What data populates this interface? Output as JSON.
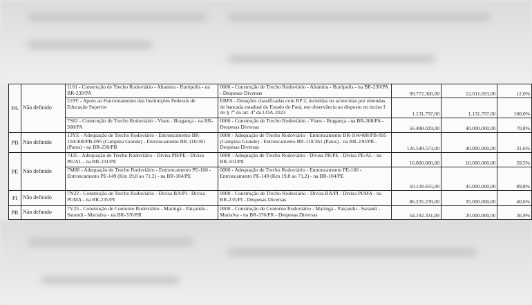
{
  "table": {
    "groups": [
      {
        "uf": "PA",
        "status": "Não definido",
        "rows": [
          {
            "acao": "1101 - Construção de Trecho Rodoviário - Altamira - Rurópolis - na BR-230/PA",
            "plano": "0000 - Construção de Trecho Rodoviário - Altamira - Rurópolis - na BR-230/PA - Despesas Diversas",
            "dotacao": "99.772.300,00",
            "valor": "12.011.693,00",
            "percentual": "12,0%"
          },
          {
            "acao": "219V - Apoio ao Funcionamento das Instituições Federais de Educação Superior",
            "plano": "EBPA - Dotações classificadas com RP 2, incluídas ou acrescidas por emendas de bancada estadual do Estado do Pará, em observância ao disposto no inciso I do § 7º do art. 4º da LOA-2023",
            "dotacao": "1.131.797,00",
            "valor": "1.131.797,00",
            "percentual": "100,0%"
          },
          {
            "acao": "7S62 - Construção de Trecho Rodoviário - Viseu - Bragança - na BR-308/PA",
            "plano": "0000 - Construção de Trecho Rodoviário - Viseu - Bragança - na BR-308/PA - Despesas Diversas",
            "dotacao": "56.488.029,00",
            "valor": "40.000.000,00",
            "percentual": "70,8%"
          }
        ]
      },
      {
        "uf": "PB",
        "status": "Não definido",
        "rows": [
          {
            "acao": "13YE - Adequação de Trecho Rodoviário - Entroncamento BR-104/408/PB-095 (Campina Grande) - Entroncamento BR-110/361 (Patos) - na BR-230/PB",
            "plano": "0000 - Adequação de Trecho Rodoviário - Entroncamento BR-104/408/PB-095 (Campina Grande) - Entroncamento BR-110/361 (Patos) - na BR-230/PB - Despesas Diversas",
            "dotacao": "126.549.573,00",
            "valor": "40.000.000,00",
            "percentual": "31,6%"
          }
        ]
      },
      {
        "uf": "PE",
        "status": "Não definido",
        "rows": [
          {
            "acao": "7435 - Adequação de Trecho Rodoviário - Divisa PB/PE - Divisa PE/AL - na BR-101/PE",
            "plano": "0000 - Adequação de Trecho Rodoviário - Divisa PB/PE - Divisa PE/AL - na BR-101/PE",
            "dotacao": "16.800.000,00",
            "valor": "10.000.000,00",
            "percentual": "59,5%"
          },
          {
            "acao": "7M88 - Adequação de Trecho Rodoviário - Entroncamento PE-160 - Entroncamento PE-149 (Km 19,8 ao 71,2) - na BR-104/PE",
            "plano": "0000 - Adequação de Trecho Rodoviário - Entroncamento PE-160 - Entroncamento PE-149 (Km 19,8 ao 71,2) - na BR-104/PE",
            "dotacao": "50.128.655,00",
            "valor": "45.000.000,00",
            "percentual": "89,8%"
          }
        ]
      },
      {
        "uf": "PI",
        "status": "Não definido",
        "rows": [
          {
            "acao": "7N22 - Construção de Trecho Rodoviário - Divisa BA/PI - Divisa PI/MA - na BR-235/PI",
            "plano": "0000 - Construção de Trecho Rodoviário - Divisa BA/PI - Divisa PI/MA - na BR-235/PI - Despesas Diversas",
            "dotacao": "86.235.239,00",
            "valor": "35.000.000,00",
            "percentual": "40,6%"
          }
        ]
      },
      {
        "uf": "PR",
        "status": "Não definido",
        "rows": [
          {
            "acao": "7V25 - Construção de Contorno Rodoviário - Maringá - Paiçandu - Sarandi - Marialva - na BR-376/PR",
            "plano": "0000 - Construção de Contorno Rodoviário - Maringá - Paiçandu - Sarandi - Marialva - na BR-376/PR - Despesas Diversas",
            "dotacao": "54.192.331,00",
            "valor": "20.000.000,00",
            "percentual": "36,9%"
          }
        ]
      }
    ]
  }
}
